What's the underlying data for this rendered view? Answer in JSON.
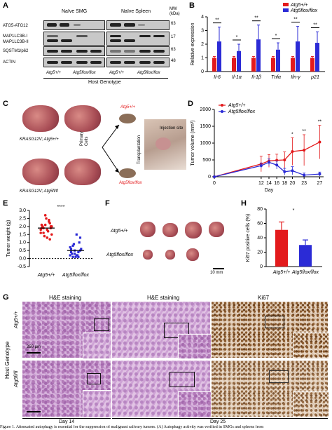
{
  "panels": {
    "A": {
      "label": "A",
      "col_headers": [
        "Naïve SMG",
        "Naïve Spleen"
      ],
      "mw_header": "MW (kDa)",
      "row_labels": [
        "ATG5-ATG12",
        "MAP1LC3B-I",
        "MAP1LC3B-II",
        "SQSTM1/p62",
        "ACTIN"
      ],
      "mw_values": [
        "63",
        "17",
        "63",
        "48"
      ],
      "genotypes": [
        "Atg5+/+",
        "Atg5flox/flox",
        "Atg5+/+",
        "Atg5flox/flox"
      ],
      "footer": "Host Genotype"
    },
    "B": {
      "label": "B",
      "legend": [
        "Atg5+/+",
        "Atg5flox/flox"
      ],
      "ylabel": "Relative expression",
      "sig": [
        "**",
        "*",
        "**",
        "*",
        "**",
        "**"
      ]
    },
    "C": {
      "label": "C",
      "tumor1": "KRASG12V; Atg5+/+",
      "tumor2": "KRASG12V; Atg5fl/fl",
      "cells": "Primary Cells",
      "transplant": "Transplantation",
      "site": "Injection site",
      "mouse1": "Atg5+/+",
      "mouse2": "Atg5flox/flox"
    },
    "D": {
      "label": "D",
      "legend": [
        "Atg5+/+",
        "Atg5flox/flox"
      ],
      "ylabel": "Tumor volume (mm³)",
      "xlabel": "Day",
      "sig": [
        "*",
        "**",
        "**"
      ]
    },
    "E": {
      "label": "E",
      "ylabel": "Tumor weight (g)",
      "sig": "****",
      "groups": [
        "Atg5+/+",
        "Atg5flox/flox"
      ]
    },
    "F": {
      "label": "F",
      "row1": "Atg5+/+",
      "row2": "Atg5flox/flox",
      "scale": "10 mm"
    },
    "H": {
      "label": "H",
      "ylabel": "Ki67 positive cells (%)",
      "sig": "*",
      "groups": [
        "Atg5+/+",
        "Atg5flox/flox"
      ]
    },
    "G": {
      "label": "G",
      "col_titles": [
        "H&E staining",
        "H&E staining",
        "Ki67"
      ],
      "side_label": "Host Genotype",
      "row_labels": [
        "Atg5+/+",
        "Atg5fl/fl"
      ],
      "scale": "250 μm",
      "days": [
        "Day 14",
        "Day 25"
      ]
    }
  },
  "caption": "Figure 1. Attenuated autophagy is essential for the suppression of malignant salivary tumors. (A) Autophagy activity was verified in SMGs and spleens from",
  "colors": {
    "wt": "#e31a1c",
    "ko": "#2b2bd6"
  },
  "chart_data": [
    {
      "type": "bar",
      "title": "",
      "categories": [
        "Il-6",
        "Il-1α",
        "Il-1β",
        "Tnfα",
        "Ifn-γ",
        "p21"
      ],
      "series": [
        {
          "name": "Atg5+/+",
          "values": [
            1.0,
            1.0,
            1.0,
            1.0,
            1.0,
            1.0
          ],
          "err": [
            0.1,
            0.1,
            0.1,
            0.1,
            0.1,
            0.1
          ]
        },
        {
          "name": "Atg5flox/flox",
          "values": [
            2.2,
            1.5,
            2.35,
            1.6,
            2.2,
            2.1
          ],
          "err": [
            1.05,
            0.5,
            1.05,
            0.5,
            1.1,
            0.8
          ]
        }
      ],
      "ylim": [
        0,
        4
      ],
      "yticks": [
        0,
        1,
        2,
        3,
        4
      ],
      "ylabel": "Relative expression"
    },
    {
      "type": "line",
      "title": "",
      "x": [
        0,
        12,
        14,
        16,
        18,
        20,
        23,
        27
      ],
      "series": [
        {
          "name": "Atg5+/+",
          "values": [
            0,
            380,
            470,
            490,
            500,
            750,
            790,
            1030
          ],
          "err": [
            0,
            230,
            190,
            180,
            240,
            410,
            460,
            500
          ]
        },
        {
          "name": "Atg5flox/flox",
          "values": [
            0,
            330,
            430,
            350,
            150,
            180,
            50,
            80
          ],
          "err": [
            0,
            80,
            100,
            120,
            100,
            120,
            60,
            60
          ]
        }
      ],
      "xlabel": "Day",
      "ylabel": "Tumor volume (mm³)",
      "ylim": [
        0,
        2000
      ],
      "yticks": [
        0,
        500,
        1000,
        1500,
        2000
      ]
    },
    {
      "type": "scatter",
      "title": "",
      "groups": [
        "Atg5+/+",
        "Atg5flox/flox"
      ],
      "values": [
        [
          1.6,
          2.0,
          2.3,
          1.8,
          2.7,
          1.9,
          2.1,
          1.5,
          2.2,
          1.7,
          2.5,
          1.4,
          2.0,
          1.8,
          1.9,
          2.4,
          1.3,
          2.1,
          1.6,
          1.9,
          2.0,
          1.2
        ],
        [
          0.2,
          0.5,
          0.1,
          1.5,
          0.3,
          0.8,
          0.4,
          0.6,
          1.0,
          0.2,
          0.1,
          0.9,
          0.3,
          0.7,
          1.3,
          0.4,
          0.2,
          0.5,
          0.1,
          0.6
        ]
      ],
      "means": [
        1.9,
        0.5
      ],
      "ylim": [
        -0.5,
        3
      ],
      "yticks": [
        -0.5,
        0.0,
        0.5,
        1.0,
        1.5,
        2.0,
        2.5,
        3.0
      ],
      "ylabel": "Tumor weight (g)"
    },
    {
      "type": "bar",
      "title": "",
      "categories": [
        "Atg5+/+",
        "Atg5flox/flox"
      ],
      "values": [
        51,
        30
      ],
      "err": [
        11,
        7
      ],
      "ylim": [
        0,
        80
      ],
      "yticks": [
        0,
        20,
        40,
        60,
        80
      ],
      "ylabel": "Ki67 positive cells (%)"
    }
  ]
}
